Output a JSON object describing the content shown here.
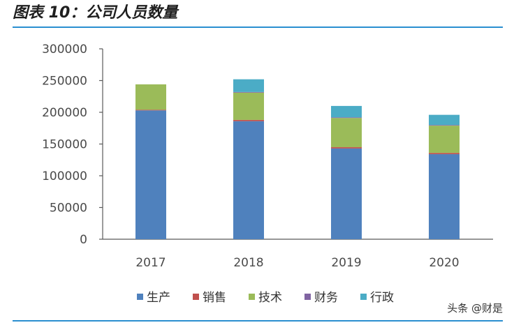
{
  "figure_title": "图表 10：公司人员数量",
  "watermark": "头条 @财是",
  "colors": {
    "rule": "#2a8fd0",
    "生产": "#4f81bd",
    "销售": "#c0504d",
    "技术": "#9bbb59",
    "财务": "#8064a2",
    "行政": "#4bacc6"
  },
  "chart_data": {
    "type": "bar",
    "stacked": true,
    "categories": [
      "2017",
      "2018",
      "2019",
      "2020"
    ],
    "series": [
      {
        "name": "生产",
        "values": [
          203000,
          186000,
          143000,
          134000
        ]
      },
      {
        "name": "销售",
        "values": [
          1000,
          2000,
          2000,
          2000
        ]
      },
      {
        "name": "技术",
        "values": [
          40000,
          43000,
          46000,
          43000
        ]
      },
      {
        "name": "财务",
        "values": [
          0,
          1000,
          1000,
          1000
        ]
      },
      {
        "name": "行政",
        "values": [
          0,
          20000,
          18000,
          16000
        ]
      }
    ],
    "ylim": [
      0,
      300000
    ],
    "yticks": [
      "0",
      "50000",
      "100000",
      "150000",
      "200000",
      "250000",
      "300000"
    ],
    "title": "",
    "xlabel": "",
    "ylabel": "",
    "grid": false,
    "legend_position": "bottom"
  }
}
